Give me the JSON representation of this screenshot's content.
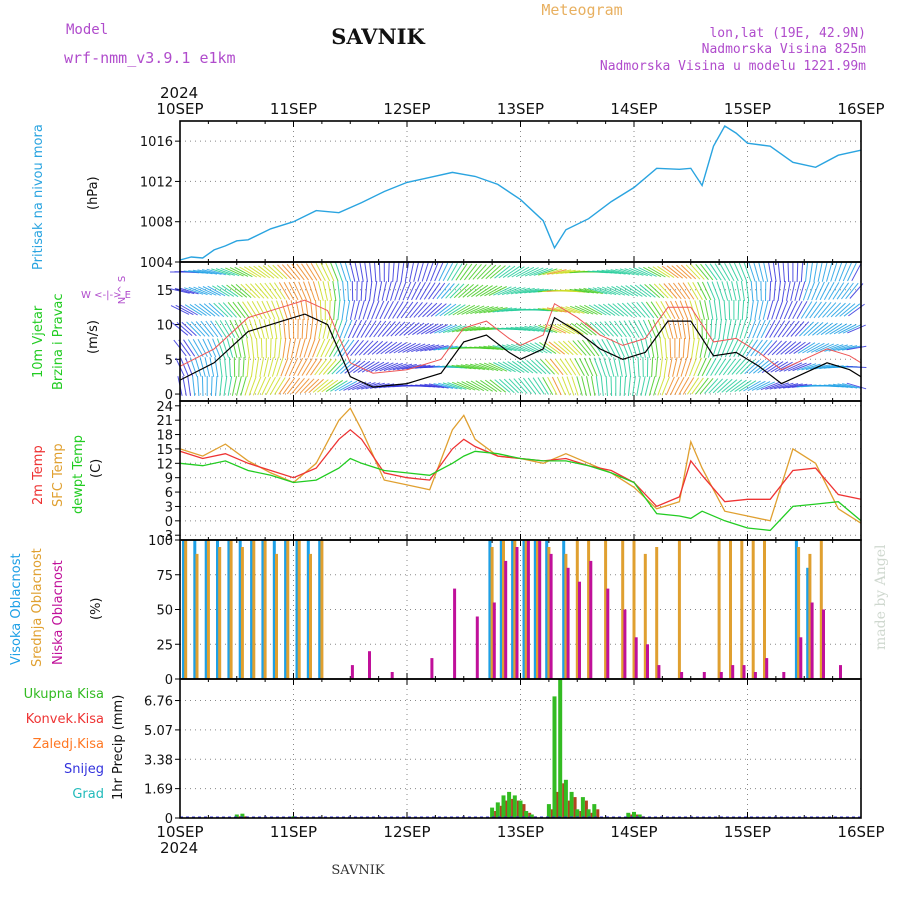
{
  "header": {
    "model_label": "Model",
    "model_name": "wrf-nmm_v3.9.1 e1km",
    "station": "SAVNIK",
    "title": "Meteogram",
    "coords": "lon,lat (19E, 42.9N)",
    "elevation": "Nadmorska Visina 825m",
    "model_elevation": "Nadmorska Visina u modelu 1221.99m",
    "footer_station": "SAVNIK",
    "watermark": "made by Angel"
  },
  "colors": {
    "pressure": "#2aa4e0",
    "temp2m": "#ee3333",
    "sfc_temp": "#e0a030",
    "dewpt": "#22cc22",
    "cloud_high": "#1ea0e6",
    "cloud_mid": "#e0a030",
    "cloud_low": "#c0109a",
    "precip_total": "#33bb22",
    "precip_conv": "#ee3333",
    "precip_grid": "#ff7722",
    "snow": "#3333dd",
    "hail": "#22bbbb"
  },
  "x_axis": {
    "year": "2024",
    "dates": [
      "10SEP",
      "11SEP",
      "12SEP",
      "13SEP",
      "14SEP",
      "15SEP",
      "16SEP"
    ]
  },
  "chart_data": [
    {
      "type": "line",
      "panel": "pressure",
      "ylabel_1": "Pritisak na nivou mora",
      "ylabel_2": "(hPa)",
      "yticks": [
        "1004",
        "1008",
        "1012",
        "1016"
      ],
      "ylim": [
        1004,
        1018
      ],
      "x_days": [
        0,
        0.1,
        0.2,
        0.3,
        0.4,
        0.5,
        0.6,
        0.8,
        1.0,
        1.2,
        1.4,
        1.6,
        1.8,
        2.0,
        2.2,
        2.4,
        2.5,
        2.6,
        2.8,
        3.0,
        3.2,
        3.3,
        3.4,
        3.6,
        3.8,
        4.0,
        4.2,
        4.4,
        4.5,
        4.6,
        4.7,
        4.8,
        4.9,
        5.0,
        5.2,
        5.4,
        5.6,
        5.8,
        6.0
      ],
      "series": [
        {
          "values": [
            1004.2,
            1004.5,
            1004.4,
            1005.2,
            1005.6,
            1006.1,
            1006.2,
            1007.3,
            1008.0,
            1009.1,
            1008.9,
            1009.9,
            1011.0,
            1011.9,
            1012.4,
            1012.9,
            1012.7,
            1012.5,
            1011.7,
            1010.2,
            1008.1,
            1005.4,
            1007.2,
            1008.3,
            1010.0,
            1011.4,
            1013.3,
            1013.2,
            1013.3,
            1011.6,
            1015.5,
            1017.5,
            1016.8,
            1015.8,
            1015.5,
            1013.9,
            1013.4,
            1014.6,
            1015.1
          ]
        }
      ]
    },
    {
      "type": "line",
      "panel": "wind",
      "ylabel_1": "10m Vjetar",
      "ylabel_2": "Brzina i Pravac",
      "ylabel_3": "(m/s)",
      "compass": "W <-|-> E",
      "compass_ns": "N ^ S",
      "yticks": [
        "0",
        "5",
        "10",
        "15"
      ],
      "ylim": [
        -1,
        19
      ],
      "x_days": [
        0,
        0.3,
        0.6,
        0.9,
        1.1,
        1.3,
        1.5,
        1.7,
        2.0,
        2.3,
        2.5,
        2.7,
        2.9,
        3.0,
        3.2,
        3.3,
        3.5,
        3.7,
        3.9,
        4.1,
        4.3,
        4.5,
        4.7,
        4.9,
        5.1,
        5.3,
        5.5,
        5.7,
        5.9,
        6.0
      ],
      "series": [
        {
          "values": [
            2.0,
            4.5,
            9.0,
            10.5,
            11.5,
            10.0,
            2.5,
            1.0,
            1.5,
            3.0,
            7.5,
            8.5,
            6.0,
            5.0,
            6.5,
            11.0,
            9.0,
            6.5,
            5.0,
            6.0,
            10.5,
            10.5,
            5.5,
            6.0,
            4.0,
            1.5,
            3.0,
            4.5,
            3.5,
            2.5
          ]
        }
      ]
    },
    {
      "type": "line",
      "panel": "temperature",
      "ylabel_1": "2m Temp",
      "ylabel_2": "SFC Temp",
      "ylabel_3": "dewpt Temp",
      "ylabel_4": "(C)",
      "yticks": [
        "-3",
        "0",
        "3",
        "6",
        "9",
        "12",
        "15",
        "18",
        "21",
        "24"
      ],
      "ylim": [
        -4,
        25
      ],
      "x_days": [
        0,
        0.2,
        0.4,
        0.6,
        0.8,
        1.0,
        1.2,
        1.4,
        1.5,
        1.6,
        1.8,
        2.0,
        2.2,
        2.4,
        2.5,
        2.6,
        2.8,
        3.0,
        3.2,
        3.4,
        3.6,
        3.8,
        4.0,
        4.2,
        4.4,
        4.5,
        4.6,
        4.8,
        5.0,
        5.2,
        5.4,
        5.6,
        5.8,
        6.0
      ],
      "series": [
        {
          "name": "2m Temp",
          "values": [
            14.5,
            13.0,
            14.0,
            12.0,
            10.5,
            9.0,
            11.0,
            17.0,
            19.0,
            17.0,
            10.0,
            9.0,
            8.5,
            15.0,
            17.0,
            15.5,
            13.5,
            13.0,
            12.5,
            13.0,
            11.5,
            10.5,
            8.0,
            3.0,
            5.0,
            12.5,
            9.5,
            4.0,
            4.5,
            4.5,
            10.5,
            11.0,
            5.5,
            4.5
          ]
        },
        {
          "name": "SFC Temp",
          "values": [
            15.0,
            13.5,
            16.0,
            12.5,
            10.0,
            8.0,
            12.0,
            21.0,
            23.5,
            19.0,
            8.5,
            7.5,
            6.5,
            19.0,
            22.0,
            17.0,
            13.5,
            13.0,
            12.0,
            14.0,
            12.0,
            10.0,
            7.0,
            2.5,
            4.0,
            16.5,
            11.0,
            2.0,
            1.0,
            0.0,
            15.0,
            12.0,
            2.5,
            -0.5
          ]
        },
        {
          "name": "dewpt Temp",
          "values": [
            12.0,
            11.5,
            12.5,
            10.5,
            9.5,
            8.0,
            8.5,
            11.0,
            13.0,
            12.0,
            10.5,
            10.0,
            9.5,
            12.0,
            13.5,
            14.5,
            14.0,
            13.0,
            12.5,
            12.5,
            11.5,
            10.0,
            8.0,
            1.5,
            1.0,
            0.5,
            2.0,
            0.0,
            -1.5,
            -2.0,
            3.0,
            3.5,
            4.0,
            0.0
          ]
        }
      ]
    },
    {
      "type": "bar",
      "panel": "clouds",
      "ylabel_1": "Visoka Oblacnost",
      "ylabel_2": "Srednja Oblacnost",
      "ylabel_3": "Niska Oblacnost",
      "ylabel_4": "(%)",
      "yticks": [
        "0",
        "25",
        "50",
        "75",
        "100"
      ],
      "ylim": [
        0,
        100
      ],
      "x_days": [
        0.05,
        0.15,
        0.25,
        0.35,
        0.45,
        0.55,
        0.65,
        0.75,
        0.85,
        0.95,
        1.05,
        1.15,
        1.25,
        1.5,
        1.65,
        1.85,
        2.0,
        2.2,
        2.4,
        2.6,
        2.75,
        2.85,
        2.95,
        3.05,
        3.15,
        3.25,
        3.4,
        3.5,
        3.6,
        3.75,
        3.9,
        4.0,
        4.1,
        4.2,
        4.4,
        4.6,
        4.75,
        4.85,
        4.95,
        5.05,
        5.15,
        5.3,
        5.45,
        5.55,
        5.65,
        5.8
      ],
      "series": [
        {
          "name": "Visoka Oblacnost",
          "values": [
            100,
            100,
            100,
            100,
            100,
            100,
            100,
            100,
            100,
            100,
            100,
            100,
            100,
            0,
            0,
            0,
            0,
            0,
            0,
            0,
            100,
            100,
            100,
            100,
            100,
            100,
            100,
            0,
            0,
            0,
            0,
            0,
            0,
            0,
            0,
            0,
            0,
            0,
            0,
            0,
            0,
            0,
            100,
            80,
            0,
            0
          ]
        },
        {
          "name": "Srednja Oblacnost",
          "values": [
            100,
            90,
            100,
            95,
            100,
            95,
            100,
            100,
            90,
            100,
            100,
            90,
            100,
            0,
            0,
            0,
            0,
            0,
            0,
            0,
            95,
            100,
            100,
            100,
            100,
            95,
            90,
            100,
            100,
            100,
            100,
            100,
            90,
            95,
            100,
            0,
            100,
            100,
            100,
            100,
            100,
            0,
            95,
            90,
            100,
            0
          ]
        },
        {
          "name": "Niska Oblacnost",
          "values": [
            0,
            0,
            0,
            0,
            0,
            0,
            0,
            0,
            0,
            0,
            0,
            0,
            0,
            10,
            20,
            5,
            0,
            15,
            65,
            45,
            55,
            85,
            95,
            100,
            100,
            90,
            80,
            70,
            85,
            65,
            50,
            30,
            25,
            10,
            5,
            5,
            5,
            10,
            10,
            5,
            15,
            5,
            30,
            55,
            50,
            10
          ]
        }
      ]
    },
    {
      "type": "bar",
      "panel": "precipitation",
      "legend": [
        "Ukupna Kisa",
        "Konvek.Kisa",
        "Zaledj.Kisa",
        "Snijeg",
        "Grad"
      ],
      "ylabel_1": "1hr Precip (mm)",
      "yticks": [
        "0",
        "1.69",
        "3.38",
        "5.07",
        "6.76"
      ],
      "ylim": [
        0,
        8.0
      ],
      "x_days": [
        0.5,
        0.55,
        1.0,
        2.75,
        2.8,
        2.85,
        2.9,
        2.95,
        3.0,
        3.05,
        3.1,
        3.25,
        3.3,
        3.35,
        3.4,
        3.45,
        3.5,
        3.55,
        3.6,
        3.65,
        3.95,
        4.0,
        4.05
      ],
      "series": [
        {
          "name": "Ukupna Kisa",
          "values": [
            0.2,
            0.25,
            0.1,
            0.6,
            0.9,
            1.3,
            1.5,
            1.3,
            1.0,
            0.4,
            0.2,
            0.8,
            7.0,
            8.0,
            2.2,
            1.5,
            0.5,
            1.2,
            0.5,
            0.8,
            0.3,
            0.35,
            0.2
          ]
        },
        {
          "name": "Konvek.Kisa",
          "values": [
            0.1,
            0.1,
            0.05,
            0.4,
            0.7,
            1.0,
            1.1,
            1.0,
            0.8,
            0.3,
            0.1,
            0.5,
            1.5,
            2.0,
            1.0,
            1.2,
            0.4,
            1.0,
            0.3,
            0.5,
            0.2,
            0.2,
            0.1
          ]
        }
      ]
    }
  ]
}
